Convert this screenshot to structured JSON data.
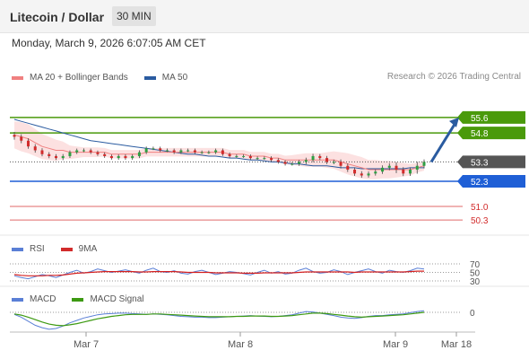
{
  "header": {
    "title": "Litecoin / Dollar",
    "interval": "30 MIN"
  },
  "timestamp": "Monday, March 9, 2026 6:07:05 AM CET",
  "copyright": "Research © 2026 Trading Central",
  "colors": {
    "resistance": "#4a9a0b",
    "support": "#1f5fd6",
    "current": "#333333",
    "level_line": "#e06a6a",
    "ma20": "#f08080",
    "ma50": "#2a5ba0",
    "bollinger_fill": "#fbd7d7",
    "bull": "#2ea043",
    "bear": "#d22b2b",
    "rsi": "#5a7fd6",
    "rsi_ma": "#d42020",
    "macd": "#5a7fd6",
    "macd_signal": "#3d9a12",
    "arrow": "#2a5ba0"
  },
  "chart_data": [
    {
      "type": "candlestick",
      "legend": [
        {
          "name": "MA 20 + Bollinger Bands",
          "color": "#f08080"
        },
        {
          "name": "MA 50",
          "color": "#2a5ba0"
        }
      ],
      "ylim": [
        49.7,
        56.8
      ],
      "levels": [
        {
          "value": 55.6,
          "label": "55.6",
          "kind": "resistance"
        },
        {
          "value": 54.8,
          "label": "54.8",
          "kind": "resistance"
        },
        {
          "value": 53.3,
          "label": "53.3",
          "kind": "current"
        },
        {
          "value": 52.3,
          "label": "52.3",
          "kind": "support"
        },
        {
          "value": 51.0,
          "label": "51.0",
          "kind": "level"
        },
        {
          "value": 50.3,
          "label": "50.3",
          "kind": "level"
        }
      ],
      "forecast_arrow": {
        "from": 53.3,
        "to": 55.6
      },
      "x_ticks": [
        "Mar 7",
        "Mar 8",
        "Mar 9",
        "Mar 18"
      ],
      "close": [
        54.6,
        54.4,
        54.1,
        53.9,
        53.7,
        53.6,
        53.5,
        53.6,
        53.8,
        53.9,
        53.9,
        53.8,
        53.7,
        53.6,
        53.5,
        53.6,
        53.5,
        53.6,
        53.8,
        54.0,
        54.0,
        53.9,
        53.9,
        53.8,
        53.9,
        53.9,
        53.8,
        53.8,
        53.8,
        53.9,
        53.7,
        53.6,
        53.6,
        53.6,
        53.5,
        53.5,
        53.5,
        53.4,
        53.3,
        53.2,
        53.2,
        53.3,
        53.4,
        53.6,
        53.5,
        53.3,
        53.3,
        53.1,
        52.9,
        52.7,
        52.6,
        52.7,
        52.8,
        53.0,
        53.1,
        52.9,
        52.7,
        52.9,
        53.1,
        53.3
      ],
      "volatility": [
        0.25,
        0.22,
        0.2,
        0.2,
        0.18,
        0.18,
        0.17,
        0.18,
        0.16,
        0.15,
        0.16,
        0.15,
        0.15,
        0.15,
        0.14,
        0.15,
        0.15,
        0.15,
        0.17,
        0.16,
        0.15,
        0.15,
        0.15,
        0.15,
        0.15,
        0.15,
        0.15,
        0.15,
        0.15,
        0.15,
        0.15,
        0.15,
        0.15,
        0.15,
        0.15,
        0.15,
        0.15,
        0.15,
        0.15,
        0.15,
        0.15,
        0.17,
        0.2,
        0.2,
        0.18,
        0.18,
        0.2,
        0.22,
        0.2,
        0.2,
        0.2,
        0.18,
        0.18,
        0.2,
        0.22,
        0.3,
        0.22,
        0.2,
        0.35,
        0.22
      ],
      "ma20": [
        54.7,
        54.6,
        54.5,
        54.3,
        54.1,
        54.0,
        53.9,
        53.9,
        53.8,
        53.8,
        53.8,
        53.8,
        53.8,
        53.8,
        53.7,
        53.7,
        53.7,
        53.7,
        53.7,
        53.8,
        53.8,
        53.8,
        53.8,
        53.8,
        53.8,
        53.8,
        53.8,
        53.8,
        53.8,
        53.8,
        53.8,
        53.7,
        53.7,
        53.7,
        53.6,
        53.6,
        53.6,
        53.5,
        53.5,
        53.4,
        53.4,
        53.4,
        53.4,
        53.4,
        53.4,
        53.4,
        53.4,
        53.3,
        53.2,
        53.1,
        53.0,
        52.9,
        52.9,
        52.9,
        52.9,
        52.9,
        52.9,
        52.9,
        53.0,
        53.1
      ],
      "band_width": [
        0.7,
        0.75,
        0.75,
        0.7,
        0.65,
        0.6,
        0.55,
        0.45,
        0.35,
        0.3,
        0.25,
        0.25,
        0.25,
        0.22,
        0.22,
        0.22,
        0.22,
        0.22,
        0.22,
        0.22,
        0.22,
        0.22,
        0.22,
        0.22,
        0.22,
        0.22,
        0.22,
        0.22,
        0.22,
        0.22,
        0.22,
        0.22,
        0.22,
        0.22,
        0.22,
        0.22,
        0.22,
        0.22,
        0.22,
        0.22,
        0.25,
        0.3,
        0.35,
        0.35,
        0.35,
        0.4,
        0.45,
        0.5,
        0.55,
        0.55,
        0.55,
        0.5,
        0.5,
        0.45,
        0.45,
        0.4,
        0.35,
        0.3,
        0.25,
        0.25
      ],
      "ma50": [
        55.5,
        55.4,
        55.3,
        55.2,
        55.1,
        55.0,
        54.9,
        54.8,
        54.7,
        54.6,
        54.5,
        54.4,
        54.35,
        54.3,
        54.25,
        54.2,
        54.15,
        54.1,
        54.05,
        54.0,
        53.95,
        53.9,
        53.85,
        53.8,
        53.75,
        53.7,
        53.7,
        53.65,
        53.6,
        53.6,
        53.55,
        53.5,
        53.5,
        53.45,
        53.4,
        53.4,
        53.35,
        53.3,
        53.3,
        53.25,
        53.2,
        53.2,
        53.15,
        53.1,
        53.1,
        53.1,
        53.05,
        53.0,
        53.0,
        53.0,
        52.95,
        52.95,
        52.95,
        52.95,
        52.95,
        52.95,
        52.95,
        53.0,
        53.0,
        53.0
      ]
    },
    {
      "type": "line",
      "legend": [
        {
          "name": "RSI",
          "color": "#5a7fd6"
        },
        {
          "name": "9MA",
          "color": "#d22b2b"
        }
      ],
      "levels": [
        70,
        50,
        30
      ],
      "ylim": [
        0,
        100
      ],
      "rsi": [
        42,
        38,
        35,
        40,
        45,
        42,
        38,
        44,
        50,
        55,
        48,
        52,
        58,
        54,
        50,
        53,
        56,
        52,
        48,
        55,
        60,
        52,
        50,
        54,
        48,
        46,
        52,
        55,
        50,
        45,
        48,
        52,
        50,
        47,
        44,
        50,
        55,
        48,
        52,
        46,
        48,
        55,
        60,
        52,
        48,
        50,
        56,
        52,
        45,
        50,
        54,
        58,
        52,
        48,
        55,
        52,
        50,
        54,
        60,
        58
      ],
      "rsi_ma": [
        45,
        43,
        42,
        42,
        42,
        43,
        43,
        44,
        46,
        48,
        49,
        50,
        51,
        52,
        52,
        52,
        52,
        52,
        51,
        51,
        52,
        52,
        52,
        52,
        51,
        50,
        50,
        50,
        50,
        49,
        49,
        49,
        49,
        48,
        48,
        48,
        49,
        49,
        49,
        49,
        49,
        50,
        51,
        51,
        51,
        51,
        51,
        51,
        51,
        50,
        51,
        51,
        51,
        51,
        51,
        51,
        51,
        52,
        53,
        53
      ]
    },
    {
      "type": "line",
      "legend": [
        {
          "name": "MACD",
          "color": "#5a7fd6"
        },
        {
          "name": "MACD Signal",
          "color": "#3d9a12"
        }
      ],
      "levels": [
        0
      ],
      "ylim": [
        -0.6,
        0.2
      ],
      "macd": [
        -0.05,
        -0.12,
        -0.22,
        -0.32,
        -0.38,
        -0.42,
        -0.4,
        -0.34,
        -0.26,
        -0.2,
        -0.14,
        -0.1,
        -0.06,
        -0.04,
        -0.03,
        -0.02,
        -0.02,
        -0.03,
        -0.04,
        -0.05,
        -0.04,
        -0.05,
        -0.06,
        -0.08,
        -0.1,
        -0.11,
        -0.12,
        -0.12,
        -0.13,
        -0.13,
        -0.12,
        -0.11,
        -0.1,
        -0.09,
        -0.08,
        -0.09,
        -0.1,
        -0.11,
        -0.1,
        -0.08,
        -0.06,
        -0.02,
        0.02,
        0.01,
        -0.02,
        -0.05,
        -0.08,
        -0.12,
        -0.14,
        -0.15,
        -0.13,
        -0.1,
        -0.08,
        -0.08,
        -0.06,
        -0.05,
        -0.04,
        -0.01,
        0.02,
        0.04
      ],
      "signal": [
        -0.04,
        -0.07,
        -0.12,
        -0.18,
        -0.24,
        -0.29,
        -0.32,
        -0.33,
        -0.31,
        -0.28,
        -0.24,
        -0.2,
        -0.16,
        -0.13,
        -0.1,
        -0.08,
        -0.06,
        -0.05,
        -0.05,
        -0.05,
        -0.04,
        -0.04,
        -0.05,
        -0.06,
        -0.07,
        -0.08,
        -0.09,
        -0.1,
        -0.11,
        -0.11,
        -0.11,
        -0.11,
        -0.1,
        -0.1,
        -0.09,
        -0.09,
        -0.09,
        -0.1,
        -0.1,
        -0.09,
        -0.08,
        -0.06,
        -0.04,
        -0.02,
        -0.02,
        -0.03,
        -0.05,
        -0.07,
        -0.09,
        -0.11,
        -0.12,
        -0.11,
        -0.1,
        -0.09,
        -0.08,
        -0.07,
        -0.06,
        -0.04,
        -0.02,
        0.0
      ]
    }
  ]
}
